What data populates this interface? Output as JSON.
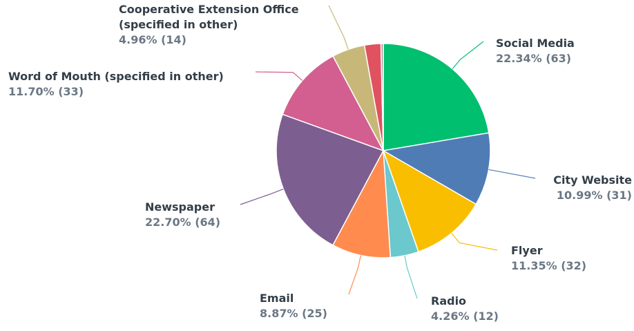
{
  "chart_data": {
    "type": "pie",
    "categories": [
      "Social Media",
      "City Website",
      "Flyer",
      "Radio",
      "Email",
      "Newspaper",
      "Word of Mouth (specified in other)",
      "Cooperative Extension Office (specified in other)",
      null,
      null
    ],
    "values": [
      22.34,
      10.99,
      11.35,
      4.26,
      8.87,
      22.7,
      11.7,
      4.96,
      2.48,
      0.35
    ],
    "value_labels": [
      "22.34% (63)",
      "10.99% (31)",
      "11.35% (32)",
      "4.26% (12)",
      "8.87% (25)",
      "22.70% (64)",
      "11.70% (33)",
      "4.96% (14)",
      null,
      null
    ],
    "colors": [
      "#00bf6f",
      "#507cb6",
      "#f9be00",
      "#6bc8cd",
      "#ff8b4f",
      "#7d5e90",
      "#d25f90",
      "#c7b879",
      "#e05260",
      "#a0a0a0"
    ]
  }
}
